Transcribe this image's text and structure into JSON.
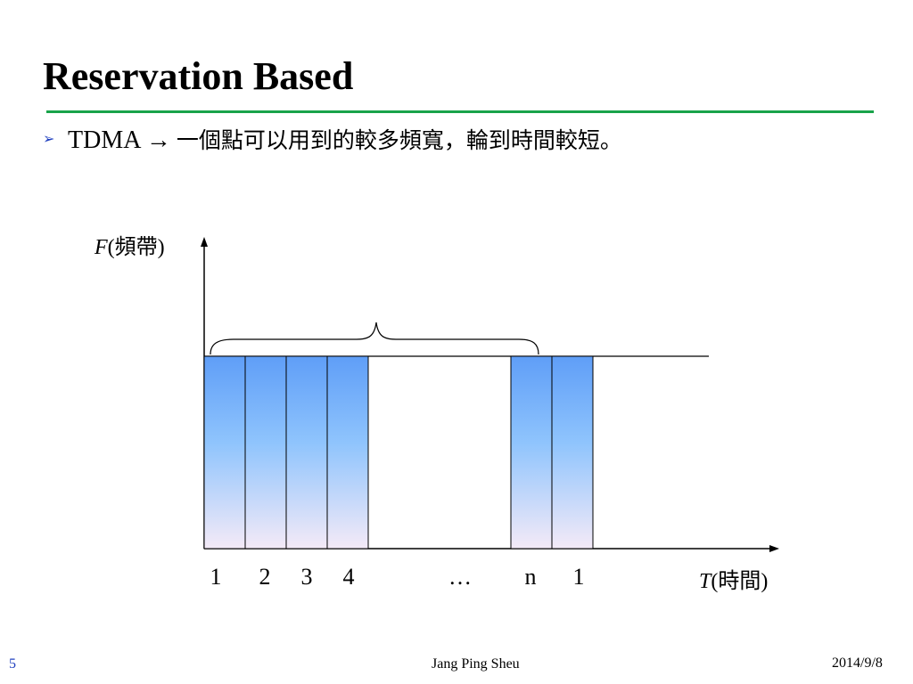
{
  "slide": {
    "title": "Reservation Based",
    "bullet": {
      "icon": "arrow-bullet-icon",
      "lead": "TDMA →",
      "text": "一個點可以用到的較多頻寬，輪到時間較短。"
    }
  },
  "diagram": {
    "y_axis": {
      "var": "F",
      "label": "(頻帶)"
    },
    "x_axis": {
      "var": "T",
      "label": "(時間)"
    },
    "slots": [
      {
        "label": "1",
        "filled": true
      },
      {
        "label": "2",
        "filled": true
      },
      {
        "label": "3",
        "filled": true
      },
      {
        "label": "4",
        "filled": true
      },
      {
        "label": "…",
        "filled": false
      },
      {
        "label": "n",
        "filled": true
      },
      {
        "label": "1",
        "filled": true
      }
    ],
    "colors": {
      "slot_top": "#5f9ef7",
      "slot_mid": "#8fc4fd",
      "slot_bottom": "#f4eaf7",
      "rule": "#19a34a"
    }
  },
  "footer": {
    "page": "5",
    "author": "Jang Ping Sheu",
    "date": "2014/9/8"
  }
}
